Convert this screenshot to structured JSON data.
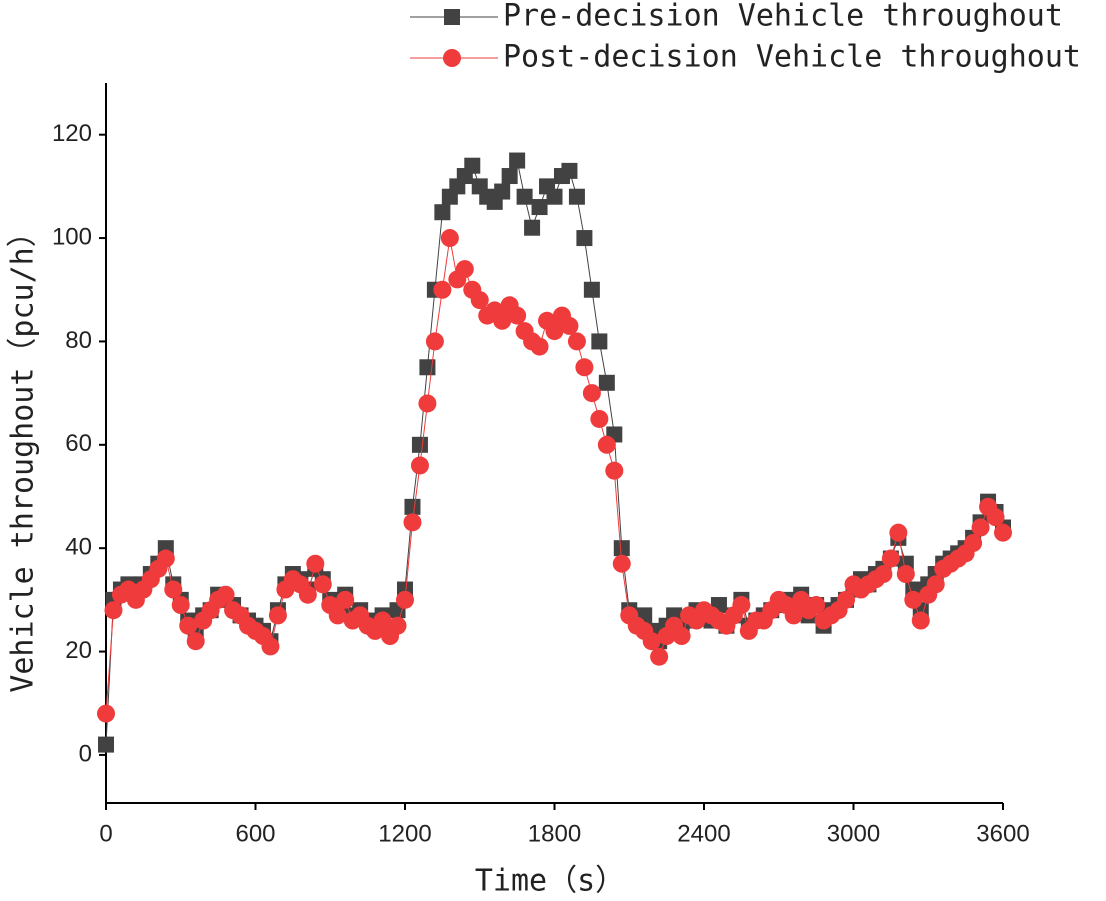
{
  "chart_data": {
    "type": "line",
    "xlabel": "Time（s）",
    "ylabel": "Vehicle throughout（pcu/h）",
    "x": [
      0,
      30,
      60,
      90,
      120,
      150,
      180,
      210,
      240,
      270,
      300,
      330,
      360,
      390,
      420,
      450,
      480,
      510,
      540,
      570,
      600,
      630,
      660,
      690,
      720,
      750,
      780,
      810,
      840,
      870,
      900,
      930,
      960,
      990,
      1020,
      1050,
      1080,
      1110,
      1140,
      1170,
      1200,
      1230,
      1260,
      1290,
      1320,
      1350,
      1380,
      1410,
      1440,
      1470,
      1500,
      1530,
      1560,
      1590,
      1620,
      1650,
      1680,
      1710,
      1740,
      1770,
      1800,
      1830,
      1860,
      1890,
      1920,
      1950,
      1980,
      2010,
      2040,
      2070,
      2100,
      2130,
      2160,
      2190,
      2220,
      2250,
      2280,
      2310,
      2340,
      2370,
      2400,
      2430,
      2460,
      2490,
      2520,
      2550,
      2580,
      2610,
      2640,
      2670,
      2700,
      2730,
      2760,
      2790,
      2820,
      2850,
      2880,
      2910,
      2940,
      2970,
      3000,
      3030,
      3060,
      3090,
      3120,
      3150,
      3180,
      3210,
      3240,
      3270,
      3300,
      3330,
      3360,
      3390,
      3420,
      3450,
      3480,
      3510,
      3540,
      3570,
      3600
    ],
    "series": [
      {
        "name": "Pre-decision Vehicle throughout",
        "color": "#424242",
        "marker": "square",
        "values": [
          2,
          30,
          32,
          33,
          31,
          33,
          35,
          37,
          40,
          33,
          30,
          26,
          24,
          27,
          28,
          31,
          30,
          29,
          27,
          26,
          25,
          24,
          22,
          28,
          33,
          35,
          34,
          32,
          36,
          34,
          30,
          28,
          31,
          27,
          28,
          26,
          25,
          27,
          24,
          28,
          32,
          48,
          60,
          75,
          90,
          105,
          108,
          110,
          112,
          114,
          110,
          108,
          107,
          109,
          112,
          115,
          108,
          102,
          106,
          110,
          108,
          112,
          113,
          108,
          100,
          90,
          80,
          72,
          62,
          40,
          28,
          26,
          27,
          24,
          22,
          25,
          27,
          24,
          26,
          28,
          27,
          26,
          29,
          25,
          27,
          30,
          25,
          26,
          27,
          28,
          29,
          30,
          28,
          31,
          27,
          29,
          25,
          28,
          29,
          30,
          32,
          34,
          33,
          35,
          36,
          38,
          42,
          37,
          32,
          28,
          33,
          35,
          37,
          38,
          39,
          40,
          42,
          45,
          49,
          47,
          44
        ]
      },
      {
        "name": "Post-decision Vehicle throughout",
        "color": "#ef3b3b",
        "marker": "circle",
        "values": [
          8,
          28,
          31,
          32,
          30,
          32,
          34,
          36,
          38,
          32,
          29,
          25,
          22,
          26,
          28,
          30,
          31,
          28,
          27,
          25,
          24,
          23,
          21,
          27,
          32,
          34,
          33,
          31,
          37,
          33,
          29,
          27,
          30,
          26,
          27,
          25,
          24,
          26,
          23,
          25,
          30,
          45,
          56,
          68,
          80,
          90,
          100,
          92,
          94,
          90,
          88,
          85,
          86,
          84,
          87,
          85,
          82,
          80,
          79,
          84,
          82,
          85,
          83,
          80,
          75,
          70,
          65,
          60,
          55,
          37,
          27,
          25,
          24,
          22,
          19,
          23,
          25,
          23,
          27,
          26,
          28,
          27,
          26,
          25,
          27,
          29,
          24,
          26,
          26,
          28,
          30,
          29,
          27,
          30,
          28,
          29,
          26,
          27,
          28,
          30,
          33,
          32,
          33,
          34,
          35,
          38,
          43,
          35,
          30,
          26,
          31,
          33,
          36,
          37,
          38,
          39,
          41,
          44,
          48,
          46,
          43
        ]
      }
    ],
    "xlim": [
      0,
      3600
    ],
    "xticks": [
      0,
      600,
      1200,
      1800,
      2400,
      3000,
      3600
    ],
    "ylim": [
      -9.3,
      130
    ],
    "yticks": [
      0,
      20,
      40,
      60,
      80,
      100,
      120
    ],
    "legend": "top-right"
  }
}
